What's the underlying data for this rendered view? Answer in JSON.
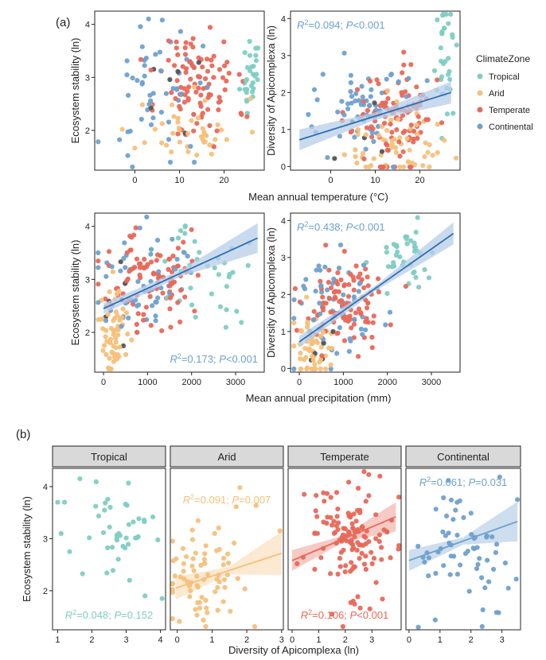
{
  "colors": {
    "Tropical": "#7fcdc3",
    "Arid": "#f5c07a",
    "Temperate": "#e8685a",
    "Continental": "#6fa1cf",
    "Other": "#555555",
    "fit_line": "#2f6fb3",
    "fit_band": "#b7cde9",
    "facet_header": "#d9d9d9"
  },
  "legend": {
    "title": "ClimateZone",
    "entries": [
      "Tropical",
      "Arid",
      "Temperate",
      "Continental"
    ],
    "placement": "right"
  },
  "section_a": {
    "label": "(a)"
  },
  "section_b": {
    "label": "(b)"
  },
  "chart_data": [
    {
      "id": "a1",
      "type": "scatter",
      "xlabel": "",
      "ylabel": "Ecosystem stability (ln)",
      "xlim": [
        -9,
        29
      ],
      "ylim": [
        1.25,
        4.25
      ],
      "xticks": [
        0,
        10,
        20
      ],
      "yticks": [
        2,
        3,
        4
      ],
      "annotation": null,
      "fit": null,
      "seed": 11,
      "clouds": [
        {
          "zone": "Tropical",
          "n": 30,
          "cx": 26,
          "sx": 1.0,
          "cy": 3.1,
          "sy": 0.45
        },
        {
          "zone": "Arid",
          "n": 45,
          "cx": 12,
          "sx": 6,
          "cy": 2.0,
          "sy": 0.3
        },
        {
          "zone": "Temperate",
          "n": 95,
          "cx": 14,
          "sx": 4.5,
          "cy": 2.85,
          "sy": 0.55
        },
        {
          "zone": "Continental",
          "n": 55,
          "cx": 6,
          "sx": 6,
          "cy": 2.9,
          "sy": 0.65
        },
        {
          "zone": "Other",
          "n": 6,
          "cx": 5,
          "sx": 4,
          "cy": 2.4,
          "sy": 0.5
        }
      ]
    },
    {
      "id": "a2",
      "type": "scatter",
      "xlabel": "",
      "ylabel": "Diversity of Apicomplexa (ln)",
      "xlim": [
        -9,
        29
      ],
      "ylim": [
        -0.1,
        4.2
      ],
      "xticks": [
        0,
        10,
        20
      ],
      "yticks": [
        0,
        1,
        2,
        3,
        4
      ],
      "annotation": {
        "r2": "0.094",
        "p": "<0.001",
        "color": "Continental",
        "pos": "top-left"
      },
      "fit": {
        "x0": -7,
        "x1": 27,
        "y0": 0.72,
        "y1": 2.0,
        "band0": 0.28,
        "bandm": 0.1,
        "band1": 0.3,
        "color": "fit_line"
      },
      "seed": 23,
      "clouds": [
        {
          "zone": "Tropical",
          "n": 35,
          "cx": 26,
          "sx": 1.0,
          "cy": 2.8,
          "sy": 0.8
        },
        {
          "zone": "Arid",
          "n": 60,
          "cx": 13,
          "sx": 6,
          "cy": 0.5,
          "sy": 0.5
        },
        {
          "zone": "Temperate",
          "n": 110,
          "cx": 14,
          "sx": 4.5,
          "cy": 1.3,
          "sy": 0.7
        },
        {
          "zone": "Continental",
          "n": 60,
          "cx": 7,
          "sx": 6,
          "cy": 1.6,
          "sy": 0.7
        },
        {
          "zone": "Other",
          "n": 6,
          "cx": 5,
          "sx": 4,
          "cy": 0.9,
          "sy": 0.6
        }
      ]
    },
    {
      "id": "a3",
      "type": "scatter",
      "xlabel": "",
      "ylabel": "Ecosystem stability (ln)",
      "xlim": [
        -200,
        3650
      ],
      "ylim": [
        1.25,
        4.25
      ],
      "xticks": [
        0,
        1000,
        2000,
        3000
      ],
      "yticks": [
        2,
        3,
        4
      ],
      "annotation": {
        "r2": "0.173",
        "p": "<0.001",
        "color": "Continental",
        "pos": "bottom-right"
      },
      "fit": {
        "x0": 0,
        "x1": 3500,
        "y0": 2.45,
        "y1": 3.78,
        "band0": 0.1,
        "bandm": 0.06,
        "band1": 0.28,
        "color": "fit_line"
      },
      "seed": 37,
      "clouds": [
        {
          "zone": "Tropical",
          "n": 35,
          "cx": 2350,
          "sx": 450,
          "cy": 3.05,
          "sy": 0.5
        },
        {
          "zone": "Arid",
          "n": 60,
          "cx": 250,
          "sx": 170,
          "cy": 2.05,
          "sy": 0.45
        },
        {
          "zone": "Temperate",
          "n": 95,
          "cx": 950,
          "sx": 500,
          "cy": 3.05,
          "sy": 0.5
        },
        {
          "zone": "Continental",
          "n": 55,
          "cx": 800,
          "sx": 520,
          "cy": 3.0,
          "sy": 0.55
        },
        {
          "zone": "Other",
          "n": 6,
          "cx": 500,
          "sx": 300,
          "cy": 2.6,
          "sy": 0.4
        }
      ]
    },
    {
      "id": "a4",
      "type": "scatter",
      "xlabel": "",
      "ylabel": "Diversity of Apicomplexa (ln)",
      "xlim": [
        -200,
        3650
      ],
      "ylim": [
        -0.1,
        4.2
      ],
      "xticks": [
        0,
        1000,
        2000,
        3000
      ],
      "yticks": [
        0,
        1,
        2,
        3,
        4
      ],
      "annotation": {
        "r2": "0.438",
        "p": "<0.001",
        "color": "Continental",
        "pos": "top-left"
      },
      "fit": {
        "x0": 0,
        "x1": 3500,
        "y0": 0.72,
        "y1": 3.65,
        "band0": 0.16,
        "bandm": 0.07,
        "band1": 0.3,
        "color": "fit_line"
      },
      "seed": 53,
      "clouds": [
        {
          "zone": "Tropical",
          "n": 40,
          "cx": 2450,
          "sx": 350,
          "cy": 3.1,
          "sy": 0.45
        },
        {
          "zone": "Arid",
          "n": 60,
          "cx": 300,
          "sx": 220,
          "cy": 0.55,
          "sy": 0.55
        },
        {
          "zone": "Temperate",
          "n": 105,
          "cx": 1050,
          "sx": 500,
          "cy": 1.6,
          "sy": 0.7
        },
        {
          "zone": "Continental",
          "n": 60,
          "cx": 900,
          "sx": 550,
          "cy": 1.5,
          "sy": 0.75
        },
        {
          "zone": "Other",
          "n": 6,
          "cx": 500,
          "sx": 300,
          "cy": 1.0,
          "sy": 0.6
        }
      ]
    },
    {
      "id": "b1",
      "type": "scatter",
      "facet": "Tropical",
      "xlabel": "",
      "ylabel": "Ecosystem stability (ln)",
      "xlim": [
        0.85,
        4.15
      ],
      "ylim": [
        1.25,
        4.35
      ],
      "xticks": [
        1,
        2,
        3,
        4
      ],
      "yticks": [
        2,
        3,
        4
      ],
      "annotation": {
        "r2": "0.048",
        "p": "0.152",
        "color": "Tropical",
        "pos": "bottom-center"
      },
      "fit": null,
      "seed": 71,
      "clouds": [
        {
          "zone": "Tropical",
          "n": 38,
          "cx": 2.9,
          "sx": 0.55,
          "cy": 3.15,
          "sy": 0.4
        }
      ],
      "extra_points": [
        [
          1.0,
          3.7
        ],
        [
          1.1,
          3.1
        ],
        [
          1.2,
          3.7
        ],
        [
          1.35,
          2.75
        ],
        [
          1.65,
          4.15
        ],
        [
          3.55,
          1.9
        ],
        [
          4.05,
          1.85
        ],
        [
          3.1,
          2.2
        ]
      ]
    },
    {
      "id": "b2",
      "type": "scatter",
      "facet": "Arid",
      "xlabel": "",
      "ylabel": "",
      "xlim": [
        -0.2,
        3.05
      ],
      "ylim": [
        1.25,
        4.35
      ],
      "xticks": [
        0,
        1,
        2,
        3
      ],
      "yticks": [],
      "annotation": {
        "r2": "0.091",
        "p": "0.007",
        "color": "Arid",
        "pos": "top-center"
      },
      "fit": {
        "x0": -0.05,
        "x1": 3.0,
        "y0": 2.05,
        "y1": 2.72,
        "band0": 0.22,
        "bandm": 0.07,
        "band1": 0.42,
        "color": "Arid"
      },
      "seed": 83,
      "clouds": [
        {
          "zone": "Arid",
          "n": 75,
          "cx": 0.8,
          "sx": 0.6,
          "cy": 2.25,
          "sy": 0.55
        }
      ],
      "extra_points": [
        [
          1.8,
          3.98
        ],
        [
          2.95,
          3.15
        ]
      ]
    },
    {
      "id": "b3",
      "type": "scatter",
      "facet": "Temperate",
      "xlabel": "",
      "ylabel": "",
      "xlim": [
        -0.15,
        4.1
      ],
      "ylim": [
        1.25,
        4.35
      ],
      "xticks": [
        0,
        1,
        2,
        3
      ],
      "yticks": [],
      "annotation": {
        "r2": "0.106",
        "p": "<0.001",
        "color": "Temperate",
        "pos": "bottom-center"
      },
      "fit": {
        "x0": 0.0,
        "x1": 3.9,
        "y0": 2.58,
        "y1": 3.42,
        "band0": 0.2,
        "bandm": 0.06,
        "band1": 0.28,
        "color": "Temperate"
      },
      "seed": 97,
      "clouds": [
        {
          "zone": "Temperate",
          "n": 125,
          "cx": 2.0,
          "sx": 0.9,
          "cy": 3.0,
          "sy": 0.6
        }
      ],
      "extra_points": [
        [
          1.5,
          1.55
        ],
        [
          3.3,
          4.2
        ],
        [
          4.0,
          2.8
        ]
      ]
    },
    {
      "id": "b4",
      "type": "scatter",
      "facet": "Continental",
      "xlabel": "",
      "ylabel": "",
      "xlim": [
        -0.1,
        3.6
      ],
      "ylim": [
        1.25,
        4.35
      ],
      "xticks": [
        0,
        1,
        2,
        3
      ],
      "yticks": [],
      "annotation": {
        "r2": "0.061",
        "p": "0.031",
        "color": "Continental",
        "pos": "top-center"
      },
      "fit": {
        "x0": 0.0,
        "x1": 3.5,
        "y0": 2.58,
        "y1": 3.33,
        "band0": 0.2,
        "bandm": 0.07,
        "band1": 0.38,
        "color": "Continental"
      },
      "seed": 101,
      "clouds": [
        {
          "zone": "Continental",
          "n": 62,
          "cx": 1.7,
          "sx": 0.75,
          "cy": 2.85,
          "sy": 0.65
        }
      ],
      "extra_points": [
        [
          3.5,
          3.75
        ],
        [
          0.3,
          1.3
        ],
        [
          0.5,
          2.55
        ]
      ]
    }
  ],
  "axis_titles": {
    "a_top_x": "Mean annual temperature (°C)",
    "a_bottom_x": "Mean annual precipitation (mm)",
    "b_x": "Diversity of Apicomplexa (ln)"
  }
}
